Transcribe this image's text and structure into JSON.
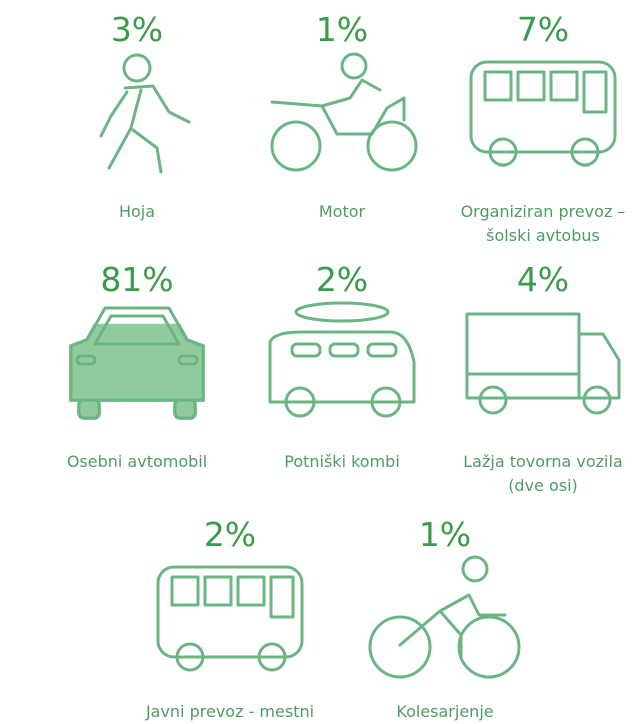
{
  "chart_data": {
    "type": "pictograph",
    "categories": [
      "Hoja",
      "Motor",
      "Organiziran prevoz – šolski avtobus",
      "Osebni avtomobil",
      "Potniški kombi",
      "Lažja tovorna vozila (dve osi)",
      "Javni prevoz - mestni",
      "Kolesarjenje"
    ],
    "values": [
      3,
      1,
      7,
      81,
      2,
      4,
      2,
      1
    ],
    "value_labels": [
      "3%",
      "1%",
      "7%",
      "81%",
      "2%",
      "4%",
      "2%",
      "1%"
    ],
    "ylim": [
      0,
      100
    ],
    "color": "#8fcb9f",
    "outline_color": "#6bb584"
  }
}
